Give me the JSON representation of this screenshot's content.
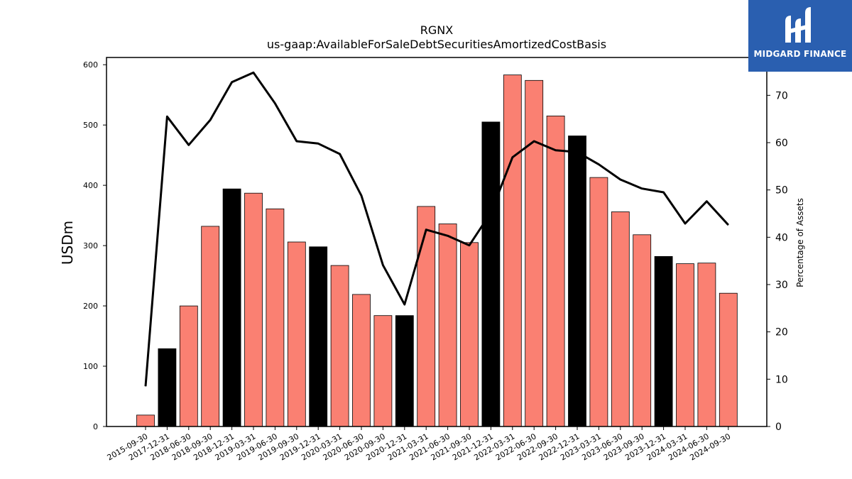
{
  "chart_data": {
    "type": "bar",
    "title": "RGNX",
    "subtitle": "us-gaap:AvailableForSaleDebtSecuritiesAmortizedCostBasis",
    "ylabel": "USDm",
    "y2label": "Percentage of Assets",
    "ylim": [
      0,
      612
    ],
    "y2lim": [
      0,
      78
    ],
    "yticks": [
      0,
      100,
      200,
      300,
      400,
      500,
      600
    ],
    "y2ticks": [
      0,
      10,
      20,
      30,
      40,
      50,
      60,
      70
    ],
    "colors": {
      "bar_default": "#fa8072",
      "bar_highlight": "#000000",
      "line": "#000000"
    },
    "categories": [
      "2015-09-30",
      "2017-12-31",
      "2018-06-30",
      "2018-09-30",
      "2018-12-31",
      "2019-03-31",
      "2019-06-30",
      "2019-09-30",
      "2019-12-31",
      "2020-03-31",
      "2020-06-30",
      "2020-09-30",
      "2020-12-31",
      "2021-03-31",
      "2021-06-30",
      "2021-09-30",
      "2021-12-31",
      "2022-03-31",
      "2022-06-30",
      "2022-09-30",
      "2022-12-31",
      "2023-03-31",
      "2023-06-30",
      "2023-09-30",
      "2023-12-31",
      "2024-03-31",
      "2024-06-30",
      "2024-09-30"
    ],
    "series": [
      {
        "type": "bar",
        "values": [
          19,
          129,
          200,
          332,
          394,
          387,
          361,
          306,
          298,
          267,
          219,
          184,
          184,
          365,
          336,
          305,
          505,
          583,
          574,
          515,
          482,
          413,
          356,
          318,
          282,
          270,
          271,
          221
        ],
        "highlight": [
          false,
          true,
          false,
          false,
          true,
          false,
          false,
          false,
          true,
          false,
          false,
          false,
          true,
          false,
          false,
          false,
          true,
          false,
          false,
          false,
          true,
          false,
          false,
          false,
          true,
          false,
          false,
          false
        ]
      },
      {
        "type": "line",
        "axis": "right",
        "values": [
          8.5,
          65.5,
          59.5,
          64.8,
          72.8,
          74.8,
          68.3,
          60.3,
          59.8,
          57.6,
          48.8,
          34.1,
          25.8,
          41.6,
          40.3,
          38.3,
          45.2,
          56.9,
          60.3,
          58.4,
          58.0,
          55.4,
          52.2,
          50.3,
          49.5,
          42.9,
          47.6,
          42.6
        ]
      }
    ]
  },
  "logo": {
    "text": "MIDGARD FINANCE"
  }
}
